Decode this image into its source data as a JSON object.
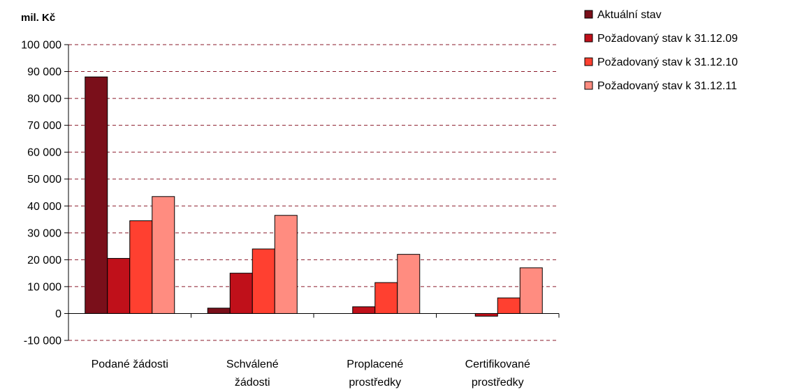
{
  "chart_data": {
    "type": "bar",
    "ylabel": "mil. Kč",
    "ylim": [
      -10000,
      100000
    ],
    "ytick_step": 10000,
    "ytick_labels": [
      "-10 000",
      "0",
      "10 000",
      "20 000",
      "30 000",
      "40 000",
      "50 000",
      "60 000",
      "70 000",
      "80 000",
      "90 000",
      "100 000"
    ],
    "grid": true,
    "legend_position": "top-right",
    "categories": [
      [
        "Podané žádosti"
      ],
      [
        "Schválené",
        "žádosti"
      ],
      [
        "Proplacené",
        "prostředky"
      ],
      [
        "Certifikované",
        "prostředky"
      ]
    ],
    "series": [
      {
        "name": "Aktuální stav",
        "color": "#7a0f1a",
        "values": [
          88000,
          2000,
          0,
          0
        ]
      },
      {
        "name": "Požadovaný stav k 31.12.09",
        "color": "#c0101a",
        "values": [
          20500,
          15000,
          2500,
          -1000
        ]
      },
      {
        "name": "Požadovaný stav k 31.12.10",
        "color": "#ff4030",
        "values": [
          34500,
          24000,
          11500,
          5800
        ]
      },
      {
        "name": "Požadovaný stav k 31.12.11",
        "color": "#ff8c80",
        "values": [
          43500,
          36500,
          22000,
          17000
        ]
      }
    ]
  }
}
